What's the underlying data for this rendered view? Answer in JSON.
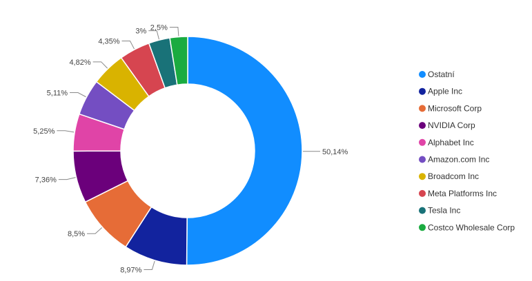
{
  "chart_data": {
    "type": "pie",
    "variant": "donut",
    "start": "top",
    "direction": "clockwise",
    "legend_position": "right",
    "categories": [
      "Ostatní",
      "Apple Inc",
      "Microsoft Corp",
      "NVIDIA Corp",
      "Alphabet Inc",
      "Amazon.com Inc",
      "Broadcom Inc",
      "Meta Platforms Inc",
      "Tesla Inc",
      "Costco Wholesale Corp"
    ],
    "values": [
      50.14,
      8.97,
      8.5,
      7.36,
      5.25,
      5.11,
      4.82,
      4.35,
      3.0,
      2.5
    ],
    "value_labels": [
      "50,14%",
      "8,97%",
      "8,5%",
      "7,36%",
      "5,25%",
      "5,11%",
      "4,82%",
      "4,35%",
      "3%",
      "2,5%"
    ],
    "colors": [
      "#118DFF",
      "#12239E",
      "#E66C37",
      "#6B007B",
      "#E044A7",
      "#744EC2",
      "#D9B300",
      "#D64550",
      "#197278",
      "#1AAB40"
    ]
  }
}
